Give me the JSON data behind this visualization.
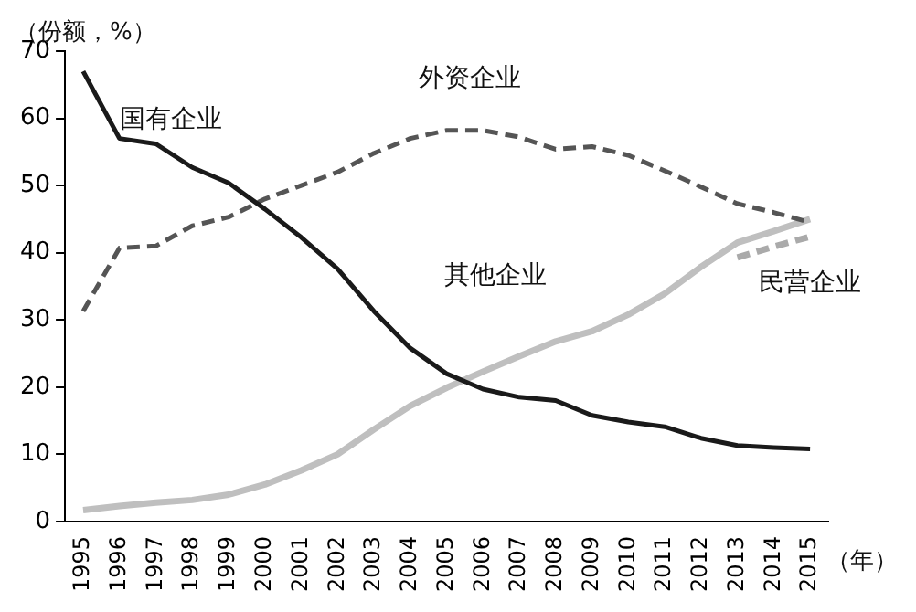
{
  "chart_data": {
    "type": "line",
    "ylabel": "（份额，%）",
    "xlabel": "（年）",
    "categories": [
      "1995",
      "1996",
      "1997",
      "1998",
      "1999",
      "2000",
      "2001",
      "2002",
      "2003",
      "2004",
      "2005",
      "2006",
      "2007",
      "2008",
      "2009",
      "2010",
      "2011",
      "2012",
      "2013",
      "2014",
      "2015"
    ],
    "series": [
      {
        "name": "国有企业",
        "color": "#1a1a1a",
        "line_style": "solid",
        "values": [
          67,
          57,
          56.2,
          52.7,
          50.4,
          46.5,
          42.3,
          37.6,
          31.3,
          25.8,
          22,
          19.7,
          18.5,
          18,
          15.8,
          14.8,
          14.1,
          12.4,
          11.3,
          11,
          10.8
        ]
      },
      {
        "name": "外资企业",
        "color": "#555555",
        "line_style": "dashed",
        "values": [
          31.3,
          40.7,
          41,
          44,
          45.3,
          48,
          50,
          52,
          54.8,
          57,
          58.2,
          58.2,
          57.2,
          55.4,
          55.8,
          54.5,
          52.2,
          49.8,
          47.3,
          46,
          44.5
        ]
      },
      {
        "name": "其他企业",
        "color": "#bfbfbf",
        "line_style": "solid",
        "values": [
          1.7,
          2.3,
          2.8,
          3.2,
          4,
          5.5,
          7.6,
          10,
          13.7,
          17.2,
          19.9,
          22.3,
          24.6,
          26.8,
          28.3,
          30.8,
          33.9,
          37.9,
          41.5,
          43.2,
          45
        ]
      },
      {
        "name": "民营企业",
        "color": "#aaaaaa",
        "line_style": "dashed",
        "values": [
          null,
          null,
          null,
          null,
          null,
          null,
          null,
          null,
          null,
          null,
          null,
          null,
          null,
          null,
          null,
          null,
          null,
          null,
          39.3,
          40.9,
          42.4
        ]
      }
    ],
    "ylim": [
      0,
      70
    ],
    "yticks": [
      0,
      10,
      20,
      30,
      40,
      50,
      60,
      70
    ],
    "grid": false,
    "legend": false,
    "marker": "none"
  }
}
